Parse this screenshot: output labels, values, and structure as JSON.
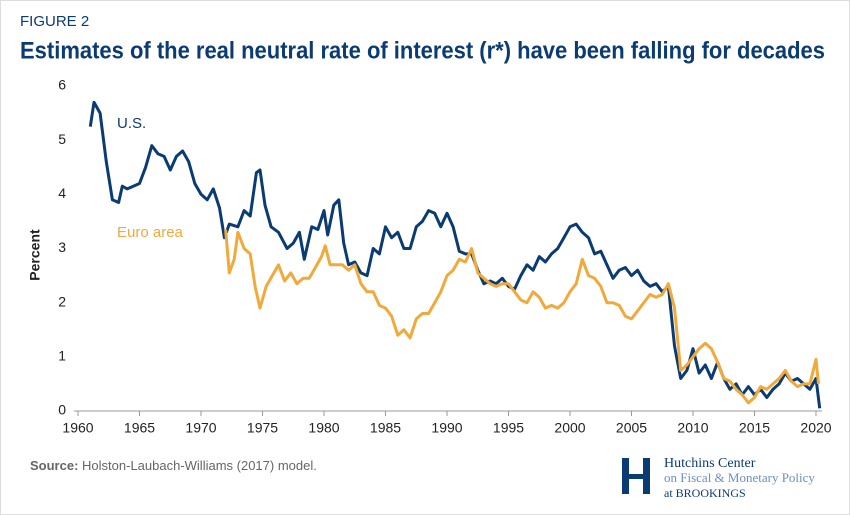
{
  "header": {
    "figure": "FIGURE 2",
    "title": "Estimates of the real neutral rate of interest (r*) have been falling for decades"
  },
  "chart_data": {
    "type": "line",
    "ylabel": "Percent",
    "xlim": [
      1960,
      2020
    ],
    "xticks": [
      1960,
      1965,
      1970,
      1975,
      1980,
      1985,
      1990,
      1995,
      2000,
      2005,
      2010,
      2015,
      2020
    ],
    "ylim": [
      0,
      6
    ],
    "yticks": [
      0,
      1,
      2,
      3,
      4,
      5,
      6
    ],
    "grid": false,
    "series": [
      {
        "name": "U.S.",
        "color": "#0b3b73",
        "x": [
          1961.0,
          1961.3,
          1961.8,
          1962.3,
          1962.8,
          1963.3,
          1963.6,
          1964,
          1964.5,
          1965,
          1965.5,
          1966,
          1966.5,
          1967,
          1967.5,
          1968,
          1968.5,
          1969,
          1969.5,
          1970,
          1970.5,
          1971,
          1971.5,
          1971.9,
          1972.3,
          1973,
          1973.5,
          1974,
          1974.5,
          1974.8,
          1975.2,
          1975.7,
          1976.3,
          1977,
          1977.5,
          1978,
          1978.4,
          1979,
          1979.5,
          1980,
          1980.3,
          1980.8,
          1981.2,
          1981.6,
          1982,
          1982.5,
          1983,
          1983.5,
          1984,
          1984.5,
          1985,
          1985.5,
          1986,
          1986.5,
          1987,
          1987.5,
          1988,
          1988.5,
          1989,
          1989.5,
          1990,
          1990.5,
          1991,
          1991.5,
          1992,
          1992.5,
          1993,
          1993.5,
          1994,
          1994.5,
          1995,
          1995.5,
          1996,
          1996.5,
          1997,
          1997.5,
          1998,
          1998.5,
          1999,
          1999.5,
          2000,
          2000.5,
          2001,
          2001.5,
          2002,
          2002.5,
          2003,
          2003.5,
          2004,
          2004.5,
          2005,
          2005.5,
          2006,
          2006.5,
          2007,
          2007.5,
          2008,
          2008.5,
          2009,
          2009.5,
          2010,
          2010.5,
          2011,
          2011.5,
          2012,
          2012.5,
          2013,
          2013.5,
          2014,
          2014.5,
          2015,
          2015.5,
          2016,
          2016.5,
          2017,
          2017.5,
          2018,
          2018.5,
          2019,
          2019.5,
          2020,
          2020.3
        ],
        "values": [
          5.25,
          5.7,
          5.5,
          4.6,
          3.9,
          3.85,
          4.15,
          4.1,
          4.15,
          4.2,
          4.5,
          4.9,
          4.75,
          4.7,
          4.45,
          4.7,
          4.8,
          4.6,
          4.2,
          4.0,
          3.9,
          4.1,
          3.75,
          3.2,
          3.45,
          3.4,
          3.7,
          3.6,
          4.4,
          4.45,
          3.8,
          3.4,
          3.3,
          3.0,
          3.1,
          3.3,
          2.8,
          3.4,
          3.35,
          3.7,
          3.25,
          3.8,
          3.9,
          3.1,
          2.7,
          2.75,
          2.55,
          2.5,
          3.0,
          2.9,
          3.4,
          3.2,
          3.3,
          3.0,
          3.0,
          3.4,
          3.5,
          3.7,
          3.65,
          3.4,
          3.65,
          3.4,
          2.95,
          2.9,
          2.9,
          2.6,
          2.35,
          2.4,
          2.35,
          2.45,
          2.3,
          2.25,
          2.5,
          2.7,
          2.6,
          2.85,
          2.75,
          2.9,
          3.0,
          3.2,
          3.4,
          3.45,
          3.3,
          3.2,
          2.9,
          2.95,
          2.7,
          2.45,
          2.6,
          2.65,
          2.5,
          2.6,
          2.4,
          2.3,
          2.35,
          2.2,
          2.3,
          1.2,
          0.6,
          0.75,
          1.15,
          0.7,
          0.85,
          0.6,
          0.9,
          0.6,
          0.4,
          0.5,
          0.3,
          0.45,
          0.3,
          0.4,
          0.25,
          0.4,
          0.5,
          0.7,
          0.55,
          0.6,
          0.5,
          0.4,
          0.6,
          0.05
        ]
      },
      {
        "name": "Euro area",
        "color": "#f2a93b",
        "x": [
          1972,
          1972.3,
          1972.7,
          1973,
          1973.5,
          1974,
          1974.4,
          1974.8,
          1975.3,
          1975.8,
          1976.3,
          1976.8,
          1977.3,
          1977.8,
          1978.3,
          1978.8,
          1979.3,
          1979.8,
          1980.1,
          1980.5,
          1981,
          1981.5,
          1982,
          1982.5,
          1983,
          1983.5,
          1984,
          1984.5,
          1985,
          1985.5,
          1986,
          1986.5,
          1987,
          1987.5,
          1988,
          1988.5,
          1989,
          1989.5,
          1990,
          1990.5,
          1991,
          1991.5,
          1992,
          1992.5,
          1993,
          1993.5,
          1994,
          1994.5,
          1995,
          1995.5,
          1996,
          1996.5,
          1997,
          1997.5,
          1998,
          1998.5,
          1999,
          1999.5,
          2000,
          2000.5,
          2001,
          2001.5,
          2002,
          2002.5,
          2003,
          2003.5,
          2004,
          2004.5,
          2005,
          2005.5,
          2006,
          2006.5,
          2007,
          2007.5,
          2008,
          2008.5,
          2009,
          2009.5,
          2010,
          2010.5,
          2011,
          2011.5,
          2012,
          2012.5,
          2013,
          2013.5,
          2014,
          2014.5,
          2015,
          2015.5,
          2016,
          2016.5,
          2017,
          2017.5,
          2018,
          2018.5,
          2019,
          2019.5,
          2020,
          2020.2
        ],
        "values": [
          3.35,
          2.55,
          2.8,
          3.3,
          3.0,
          2.9,
          2.3,
          1.9,
          2.3,
          2.5,
          2.7,
          2.4,
          2.55,
          2.35,
          2.45,
          2.45,
          2.65,
          2.85,
          3.05,
          2.7,
          2.7,
          2.7,
          2.6,
          2.7,
          2.35,
          2.2,
          2.2,
          1.95,
          1.9,
          1.75,
          1.4,
          1.5,
          1.35,
          1.7,
          1.8,
          1.8,
          2.0,
          2.2,
          2.5,
          2.6,
          2.8,
          2.75,
          3.0,
          2.55,
          2.45,
          2.35,
          2.3,
          2.35,
          2.35,
          2.2,
          2.05,
          2.0,
          2.2,
          2.1,
          1.9,
          1.95,
          1.9,
          2.0,
          2.2,
          2.35,
          2.8,
          2.5,
          2.45,
          2.3,
          2.0,
          2.0,
          1.95,
          1.75,
          1.7,
          1.85,
          2.0,
          2.15,
          2.1,
          2.15,
          2.35,
          1.9,
          0.75,
          0.85,
          1.0,
          1.15,
          1.25,
          1.15,
          0.9,
          0.6,
          0.55,
          0.4,
          0.3,
          0.15,
          0.25,
          0.45,
          0.4,
          0.5,
          0.6,
          0.75,
          0.55,
          0.45,
          0.5,
          0.5,
          0.95,
          0.5
        ]
      }
    ]
  },
  "source": {
    "label": "Source:",
    "text": "Holston-Laubach-Williams (2017) model."
  },
  "logo": {
    "line1": "Hutchins Center",
    "line2": "on Fiscal & Monetary Policy",
    "line3": "at BROOKINGS"
  }
}
